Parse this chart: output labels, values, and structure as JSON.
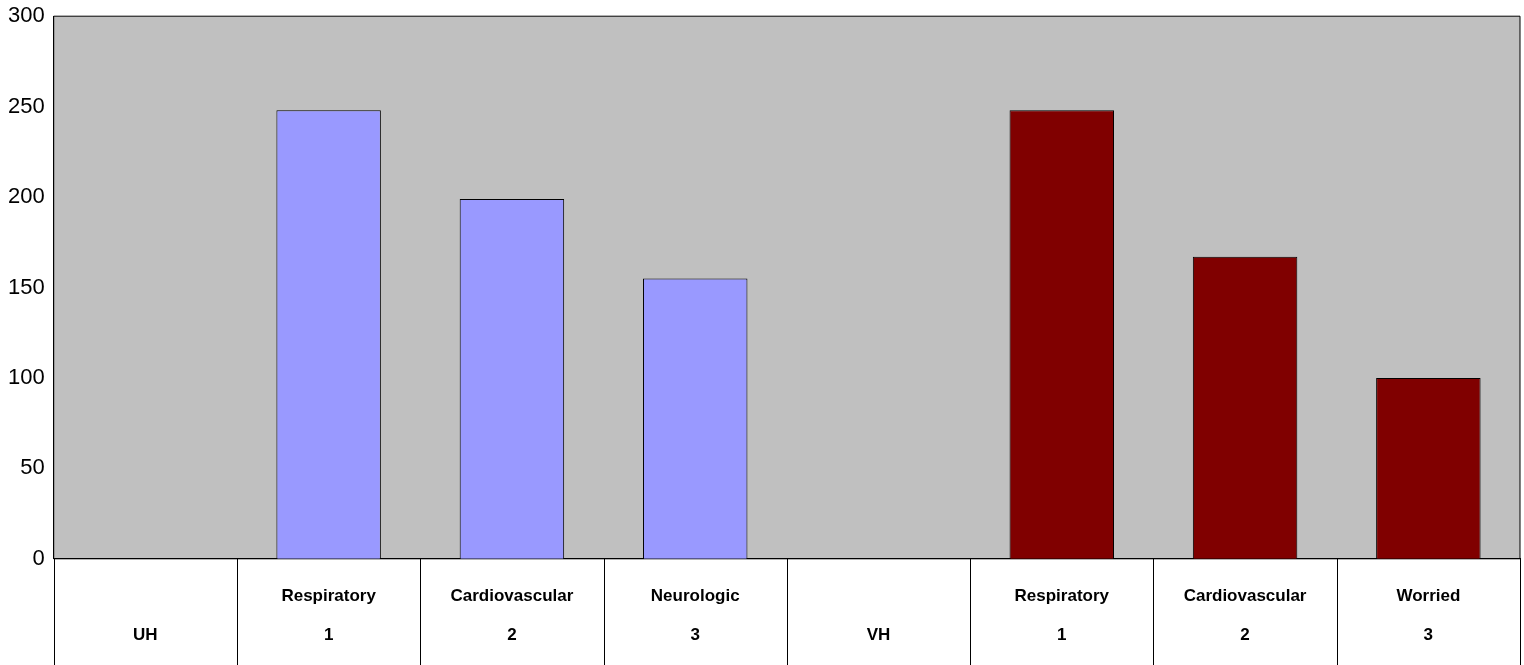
{
  "chart_data": {
    "type": "bar",
    "categories": [
      "\nUH",
      "Respiratory\n1",
      "Cardiovascular\n2",
      "Neurologic\n3",
      "\nVH",
      "Respiratory\n1",
      "Cardiovascular\n2",
      "Worried\n3"
    ],
    "values": [
      null,
      248,
      199,
      155,
      null,
      248,
      167,
      100
    ],
    "colors": [
      "#9999ff",
      "#9999ff",
      "#9999ff",
      "#9999ff",
      "#800000",
      "#800000",
      "#800000",
      "#800000"
    ],
    "ylim": [
      0,
      300
    ],
    "yticks": [
      0,
      50,
      100,
      150,
      200,
      250,
      300
    ],
    "grid": false,
    "legend": false
  }
}
